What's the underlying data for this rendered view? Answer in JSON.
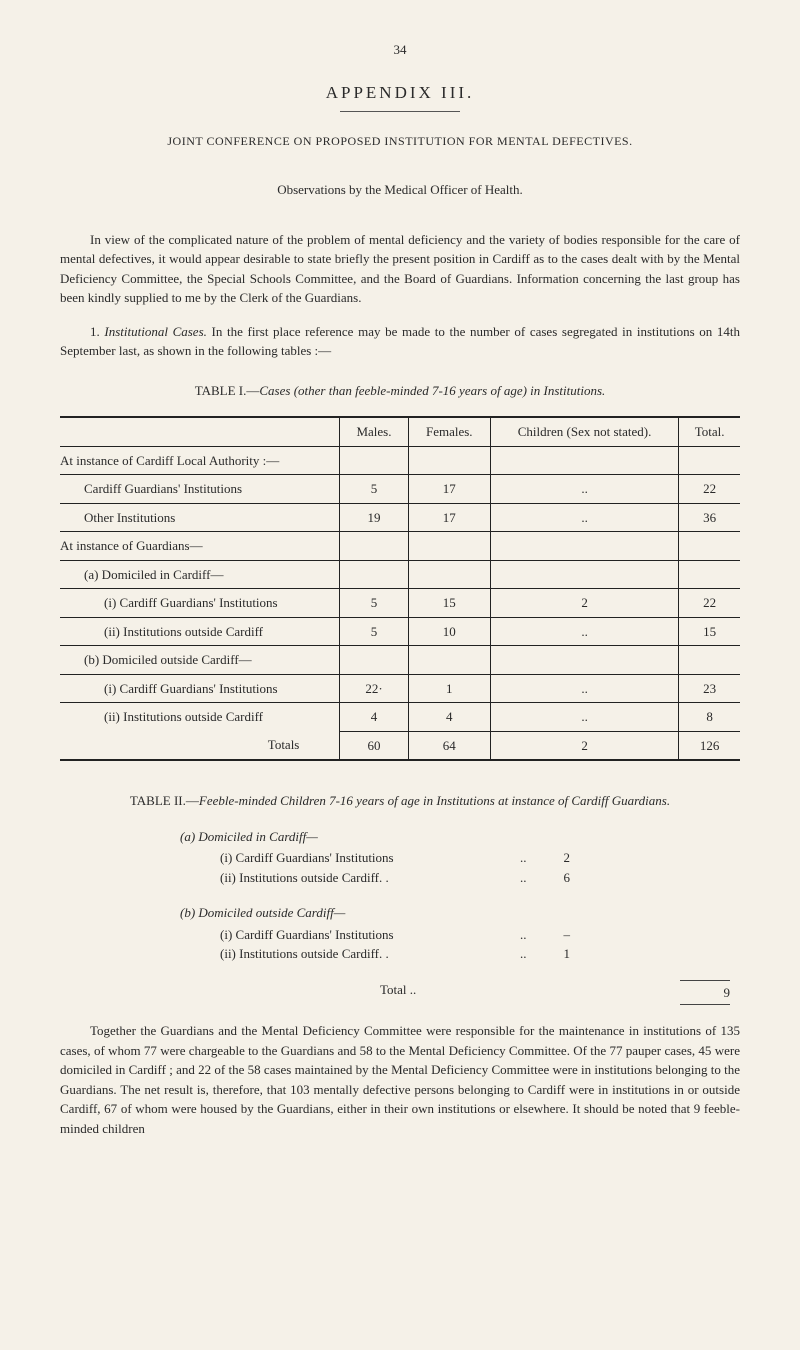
{
  "page_number": "34",
  "appendix_title": "APPENDIX III.",
  "subtitle": "JOINT CONFERENCE ON PROPOSED INSTITUTION FOR MENTAL DEFECTIVES.",
  "observations": "Observations by the Medical Officer of Health.",
  "para1": "In view of the complicated nature of the problem of mental deficiency and the variety of bodies responsible for the care of mental defectives, it would appear desirable to state briefly the present position in Cardiff as to the cases dealt with by the Mental Deficiency Committee, the Special Schools Committee, and the Board of Guardians. Information concerning the last group has been kindly supplied to me by the Clerk of the Guardians.",
  "para2_lead": "1. ",
  "para2_ital": "Institutional Cases.",
  "para2_rest": " In the first place reference may be made to the number of cases segregated in institutions on 14th September last, as shown in the following tables :—",
  "table1_caption_prefix": "TABLE I.—",
  "table1_caption_ital": "Cases (other than feeble-minded 7-16 years of age) in Institutions.",
  "table1": {
    "headers": [
      "Males.",
      "Females.",
      "Children (Sex not stated).",
      "Total."
    ],
    "rows": [
      {
        "label": "At instance of Cardiff Local Authority :—",
        "indent": 0,
        "vals": [
          "",
          "",
          "",
          ""
        ]
      },
      {
        "label": "Cardiff Guardians' Institutions",
        "indent": 1,
        "vals": [
          "5",
          "17",
          "..",
          "22"
        ]
      },
      {
        "label": "Other Institutions",
        "indent": 1,
        "vals": [
          "19",
          "17",
          "..",
          "36"
        ]
      },
      {
        "label": "At instance of Guardians—",
        "indent": 0,
        "vals": [
          "",
          "",
          "",
          ""
        ]
      },
      {
        "label": "(a) Domiciled in Cardiff—",
        "indent": 1,
        "vals": [
          "",
          "",
          "",
          ""
        ]
      },
      {
        "label": "(i) Cardiff Guardians' Institutions",
        "indent": 2,
        "vals": [
          "5",
          "15",
          "2",
          "22"
        ]
      },
      {
        "label": "(ii) Institutions outside Cardiff",
        "indent": 2,
        "vals": [
          "5",
          "10",
          "..",
          "15"
        ]
      },
      {
        "label": "(b) Domiciled outside Cardiff—",
        "indent": 1,
        "vals": [
          "",
          "",
          "",
          ""
        ]
      },
      {
        "label": "(i) Cardiff Guardians' Institutions",
        "indent": 2,
        "vals": [
          "22·",
          "1",
          "..",
          "23"
        ]
      },
      {
        "label": "(ii) Institutions outside Cardiff",
        "indent": 2,
        "vals": [
          "4",
          "4",
          "..",
          "8"
        ]
      }
    ],
    "totals": {
      "label": "Totals",
      "vals": [
        "60",
        "64",
        "2",
        "126"
      ]
    }
  },
  "table2_caption_prefix": "TABLE II.—",
  "table2_caption_ital": "Feeble-minded Children 7-16 years of age in Institutions at instance of Cardiff Guardians.",
  "list": {
    "groups": [
      {
        "head": "(a) Domiciled in Cardiff—",
        "items": [
          {
            "label": "(i) Cardiff Guardians' Institutions",
            "dots": "..",
            "val": "2"
          },
          {
            "label": "(ii) Institutions outside Cardiff. .",
            "dots": "..",
            "val": "6"
          }
        ]
      },
      {
        "head": "(b) Domiciled outside Cardiff—",
        "items": [
          {
            "label": "(i) Cardiff Guardians' Institutions",
            "dots": "..",
            "val": "–"
          },
          {
            "label": "(ii) Institutions outside Cardiff. .",
            "dots": "..",
            "val": "1"
          }
        ]
      }
    ],
    "total_label": "Total ..",
    "total_val": "9"
  },
  "para3": "Together the Guardians and the Mental Deficiency Committee were responsible for the maintenance in institutions of 135 cases, of whom 77 were chargeable to the Guardians and 58 to the Mental Deficiency Committee. Of the 77 pauper cases, 45 were domiciled in Cardiff ; and 22 of the 58 cases maintained by the Mental Deficiency Committee were in institutions belonging to the Guardians. The net result is, therefore, that 103 mentally defective persons belonging to Cardiff were in institutions in or outside Cardiff, 67 of whom were housed by the Guardians, either in their own institutions or elsewhere. It should be noted that 9 feeble-minded children"
}
